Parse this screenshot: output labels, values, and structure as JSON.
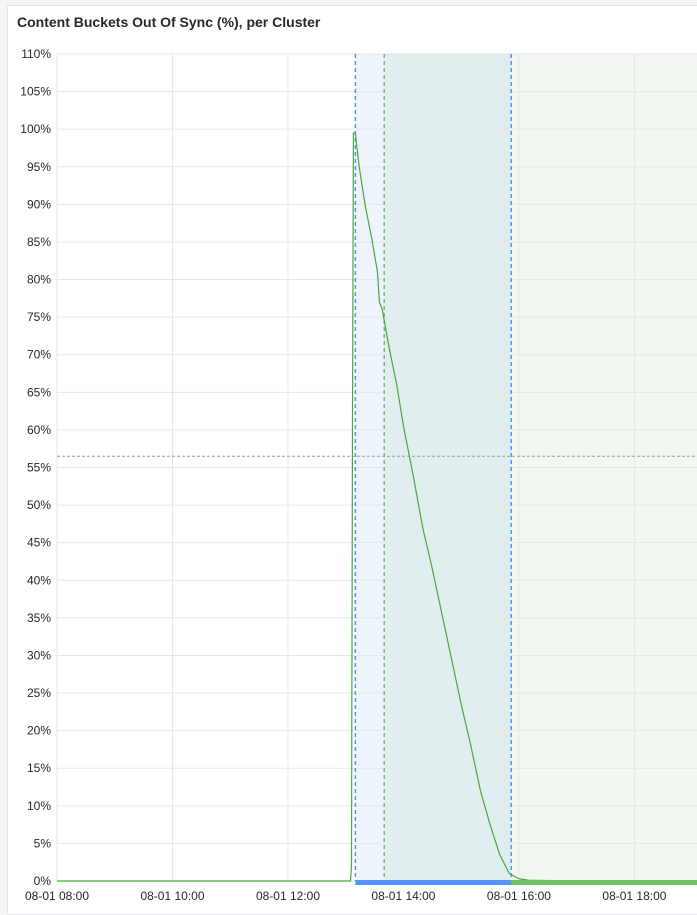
{
  "panel": {
    "title": "Content Buckets Out Of Sync (%), per Cluster"
  },
  "chart_data": {
    "type": "line",
    "title": "Content Buckets Out Of Sync (%), per Cluster",
    "xlabel": "",
    "ylabel": "",
    "ylim": [
      0,
      110
    ],
    "xlim": [
      "08-01 08:00",
      "08-01 19:05"
    ],
    "y_ticks": [
      "0%",
      "5%",
      "10%",
      "15%",
      "20%",
      "25%",
      "30%",
      "35%",
      "40%",
      "45%",
      "50%",
      "55%",
      "60%",
      "65%",
      "70%",
      "75%",
      "80%",
      "85%",
      "90%",
      "95%",
      "100%",
      "105%",
      "110%"
    ],
    "x_ticks": [
      "08-01 08:00",
      "08-01 10:00",
      "08-01 12:00",
      "08-01 14:00",
      "08-01 16:00",
      "08-01 18:00"
    ],
    "grid": true,
    "threshold_line": 56.5,
    "series": [
      {
        "color": "#4ca63e",
        "x": [
          "08-01 08:00",
          "08-01 13:05",
          "08-01 13:06",
          "08-01 13:07",
          "08-01 13:08",
          "08-01 13:10",
          "08-01 13:14",
          "08-01 13:20",
          "08-01 13:27",
          "08-01 13:33",
          "08-01 13:35",
          "08-01 13:38",
          "08-01 13:45",
          "08-01 13:53",
          "08-01 14:00",
          "08-01 14:10",
          "08-01 14:20",
          "08-01 14:30",
          "08-01 14:40",
          "08-01 14:50",
          "08-01 15:00",
          "08-01 15:10",
          "08-01 15:20",
          "08-01 15:30",
          "08-01 15:40",
          "08-01 15:50",
          "08-01 16:00",
          "08-01 16:10",
          "08-01 17:00",
          "08-01 18:00",
          "08-01 19:05"
        ],
        "y": [
          0,
          0,
          2,
          60,
          99.5,
          99.5,
          95,
          90,
          85.5,
          81,
          77,
          76,
          71,
          66,
          60.5,
          54,
          47,
          41.5,
          35.5,
          29.5,
          23.5,
          18,
          12,
          7.5,
          3.5,
          1,
          0.3,
          0.1,
          0,
          0,
          0
        ]
      }
    ],
    "annotations": [
      {
        "kind": "region",
        "start": "08-01 13:10",
        "end": "08-01 15:52",
        "color": "#5794f2"
      },
      {
        "kind": "region",
        "start": "08-01 13:40",
        "end": "08-01 19:05",
        "color": "#73bf69"
      }
    ]
  }
}
